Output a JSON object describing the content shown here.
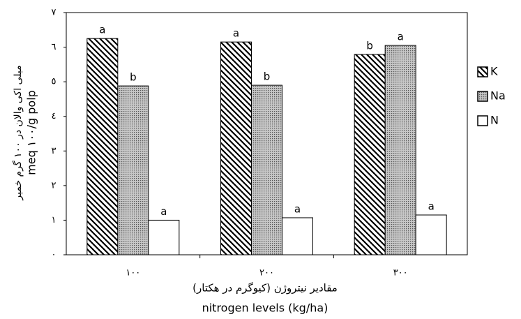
{
  "chart_data": {
    "type": "bar",
    "y_label": "میلی اکی والان در ۱۰۰ گرم خمیر",
    "y_label_2": "meq ۱۰۰/g polp",
    "x_label": "مقادیر نیتروژن (کیوگرم در هکتار)",
    "x_label_2": "nitrogen levels (kg/ha)",
    "categories": [
      "١٠٠",
      "٢٠٠",
      "٣٠٠"
    ],
    "series": [
      {
        "name": "K",
        "color": "#000000",
        "pattern": "hatch",
        "values": [
          6.25,
          6.15,
          5.79
        ],
        "letters": [
          "a",
          "a",
          "b"
        ]
      },
      {
        "name": "Na",
        "color": "#808080",
        "pattern": "dots",
        "values": [
          4.88,
          4.9,
          6.05
        ],
        "letters": [
          "b",
          "b",
          "a"
        ]
      },
      {
        "name": "N",
        "color": "#ffffff",
        "pattern": "none",
        "values": [
          1.0,
          1.07,
          1.15
        ],
        "letters": [
          "a",
          "a",
          "a"
        ]
      }
    ],
    "ylim": [
      0,
      7
    ],
    "yticks": [
      {
        "value": 0,
        "label": "٠"
      },
      {
        "value": 1,
        "label": "١"
      },
      {
        "value": 2,
        "label": "٢"
      },
      {
        "value": 3,
        "label": "٣"
      },
      {
        "value": 4,
        "label": "٤"
      },
      {
        "value": 5,
        "label": "٥"
      },
      {
        "value": 6,
        "label": "٦"
      },
      {
        "value": 7,
        "label": "٧"
      }
    ],
    "legend": "right",
    "grid": false
  }
}
